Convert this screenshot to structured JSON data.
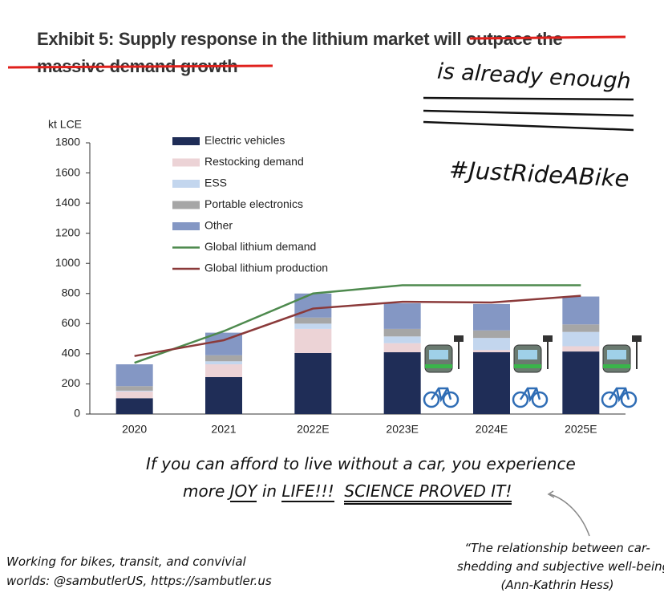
{
  "chart_data": {
    "type": "bar",
    "title": "Exhibit 5: Supply response in the lithium market",
    "struck_title": [
      "will outpace the",
      "massive demand growth"
    ],
    "y_label": "kt LCE",
    "categories": [
      "2020",
      "2021",
      "2022E",
      "2023E",
      "2024E",
      "2025E"
    ],
    "series": [
      {
        "name": "Electric vehicles",
        "color": "#1f2d57",
        "values": [
          105,
          245,
          405,
          410,
          410,
          415
        ]
      },
      {
        "name": "Restocking demand",
        "color": "#ecd3d6",
        "values": [
          45,
          85,
          160,
          60,
          15,
          35
        ]
      },
      {
        "name": "ESS",
        "color": "#c3d6ee",
        "values": [
          5,
          20,
          35,
          45,
          80,
          95
        ]
      },
      {
        "name": "Portable electronics",
        "color": "#a6a6a6",
        "values": [
          30,
          40,
          40,
          50,
          50,
          50
        ]
      },
      {
        "name": "Other",
        "color": "#8497c4",
        "values": [
          145,
          150,
          160,
          170,
          175,
          185
        ]
      }
    ],
    "lines": [
      {
        "name": "Global lithium demand",
        "color": "#4e8a4e",
        "values": [
          340,
          550,
          800,
          855,
          855,
          855
        ]
      },
      {
        "name": "Global lithium production",
        "color": "#8b3a3a",
        "values": [
          385,
          490,
          700,
          745,
          740,
          785
        ]
      }
    ],
    "ylim": [
      0,
      1800
    ],
    "yticks": [
      0,
      200,
      400,
      600,
      800,
      1000,
      1200,
      1400,
      1600,
      1800
    ],
    "legend": "upper left"
  },
  "annotations": {
    "replacement": "is already enough",
    "hashtag": "#JustRideABike",
    "claim_line1": "If you can afford to live without a car, you experience",
    "claim_line2": [
      "more",
      "JOY",
      "in",
      "LIFE!!!",
      "SCIENCE PROVED IT!"
    ],
    "credit": [
      "Working for bikes, transit, and convivial",
      "worlds: @sambutlerUS, https://sambutler.us"
    ],
    "quote": [
      "“The relationship between car-",
      "shedding and subjective well-being”",
      "(Ann-Kathrin Hess)"
    ]
  }
}
